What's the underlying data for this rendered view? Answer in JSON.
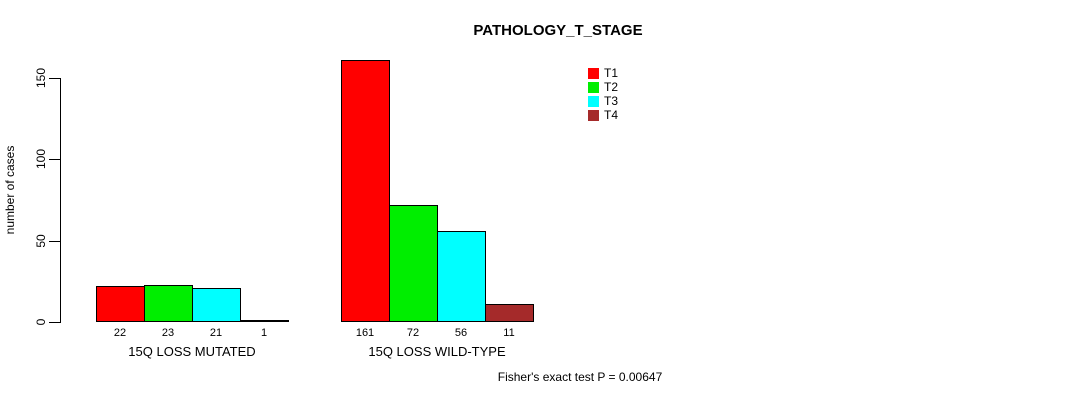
{
  "chart_data": {
    "type": "bar",
    "title": "PATHOLOGY_T_STAGE",
    "xlabel": "",
    "ylabel": "number of cases",
    "categories": [
      "15Q LOSS MUTATED",
      "15Q LOSS WILD-TYPE"
    ],
    "series": [
      {
        "name": "T1",
        "color": "#ff0000",
        "values": [
          22,
          161
        ]
      },
      {
        "name": "T2",
        "color": "#00ee00",
        "values": [
          23,
          72
        ]
      },
      {
        "name": "T3",
        "color": "#00ffff",
        "values": [
          21,
          56
        ]
      },
      {
        "name": "T4",
        "color": "#a52a2a",
        "values": [
          1,
          11
        ]
      }
    ],
    "bar_value_labels": [
      [
        "22",
        "23",
        "21",
        "1"
      ],
      [
        "161",
        "72",
        "56",
        "11"
      ]
    ],
    "ylim": [
      0,
      150
    ],
    "yticks": [
      0,
      50,
      100,
      150
    ],
    "grid": false,
    "legend_position": "top-right",
    "annotation": "Fisher's exact test P = 0.00647"
  }
}
